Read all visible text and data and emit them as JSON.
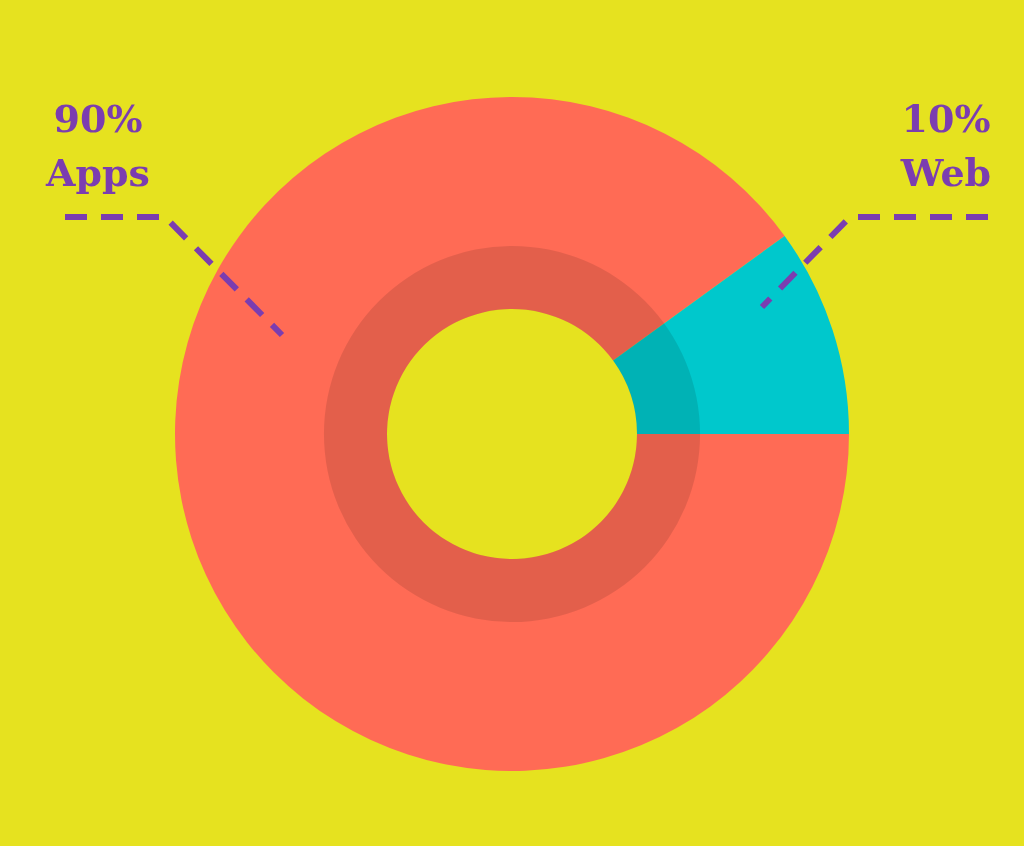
{
  "chart_data": {
    "type": "donut",
    "categories": [
      "Apps",
      "Web"
    ],
    "values": [
      90,
      10
    ],
    "colors": [
      "#ff6b55",
      "#00c8cc"
    ],
    "value_labels": [
      "90%",
      "10%"
    ]
  }
}
